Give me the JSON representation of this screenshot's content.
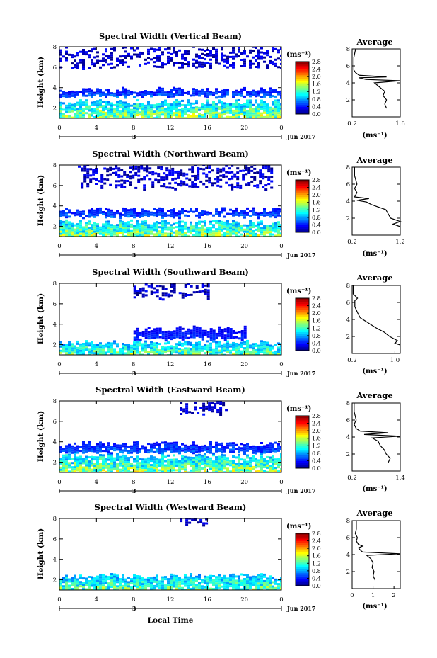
{
  "figure": {
    "x_axis_title": "Local Time",
    "date_label": "Jun 2017",
    "day_label": "3",
    "x_tick_labels": [
      "0",
      "4",
      "8",
      "12",
      "16",
      "20",
      "0"
    ],
    "height_label": "Height (km)",
    "colorbar_unit": "(ms⁻¹)",
    "colorbar_ticks": [
      "2.8",
      "2.4",
      "2.0",
      "1.6",
      "1.2",
      "0.8",
      "0.4",
      "0.0"
    ],
    "profile_title": "Average",
    "profile_unit": "(ms⁻¹)"
  },
  "chart_data": [
    {
      "type": "heatmap",
      "title": "Spectral Width (Vertical Beam)",
      "xlabel": "",
      "ylabel": "Height (km)",
      "xlim": [
        0,
        24
      ],
      "ylim": [
        1,
        8
      ],
      "x_ticks": [
        0,
        4,
        8,
        12,
        16,
        20,
        24
      ],
      "y_ticks": [
        2,
        4,
        6,
        8
      ],
      "colorbar": {
        "label": "(ms⁻¹)",
        "range": [
          0.0,
          2.8
        ],
        "ticks": [
          2.8,
          2.4,
          2.0,
          1.6,
          1.2,
          0.8,
          0.4,
          0.0
        ]
      },
      "regions": [
        {
          "desc": "boundary layer",
          "x": [
            0,
            24
          ],
          "height": [
            1.0,
            2.6
          ],
          "width": [
            0.4,
            2.0
          ]
        },
        {
          "desc": "upper layer",
          "x": [
            0,
            24
          ],
          "height": [
            3.2,
            3.8
          ],
          "width": [
            0.2,
            0.8
          ]
        },
        {
          "desc": "upper sparse echoes",
          "x": [
            0,
            24
          ],
          "height": [
            6.0,
            8.0
          ],
          "width": [
            0.0,
            0.4
          ]
        }
      ]
    },
    {
      "type": "heatmap",
      "title": "Spectral Width (Northward Beam)",
      "xlabel": "",
      "ylabel": "Height (km)",
      "xlim": [
        0,
        24
      ],
      "ylim": [
        1,
        8
      ],
      "x_ticks": [
        0,
        4,
        8,
        12,
        16,
        20,
        24
      ],
      "y_ticks": [
        2,
        4,
        6,
        8
      ],
      "colorbar": {
        "label": "(ms⁻¹)",
        "range": [
          0.0,
          2.8
        ],
        "ticks": [
          2.8,
          2.4,
          2.0,
          1.6,
          1.2,
          0.8,
          0.4,
          0.0
        ]
      },
      "regions": [
        {
          "desc": "boundary layer",
          "x": [
            0,
            24
          ],
          "height": [
            1.0,
            2.4
          ],
          "width": [
            0.4,
            2.0
          ]
        },
        {
          "desc": "upper layer",
          "x": [
            0,
            24
          ],
          "height": [
            3.0,
            3.6
          ],
          "width": [
            0.2,
            0.8
          ]
        },
        {
          "desc": "upper sparse echoes",
          "x": [
            2,
            23
          ],
          "height": [
            5.8,
            8.0
          ],
          "width": [
            0.0,
            0.4
          ]
        }
      ]
    },
    {
      "type": "heatmap",
      "title": "Spectral Width (Southward Beam)",
      "xlabel": "",
      "ylabel": "Height (km)",
      "xlim": [
        0,
        24
      ],
      "ylim": [
        1,
        8
      ],
      "x_ticks": [
        0,
        4,
        8,
        12,
        16,
        20,
        24
      ],
      "y_ticks": [
        2,
        4,
        6,
        8
      ],
      "colorbar": {
        "label": "(ms⁻¹)",
        "range": [
          0.0,
          2.8
        ],
        "ticks": [
          2.8,
          2.4,
          2.0,
          1.6,
          1.2,
          0.8,
          0.4,
          0.0
        ]
      },
      "regions": [
        {
          "desc": "boundary layer",
          "x": [
            0,
            24
          ],
          "height": [
            1.0,
            2.2
          ],
          "width": [
            0.4,
            1.8
          ]
        },
        {
          "desc": "upper layer",
          "x": [
            8,
            20
          ],
          "height": [
            2.6,
            3.6
          ],
          "width": [
            0.2,
            0.6
          ]
        },
        {
          "desc": "upper sparse echoes",
          "x": [
            8,
            16
          ],
          "height": [
            6.6,
            8.0
          ],
          "width": [
            0.0,
            0.4
          ]
        }
      ]
    },
    {
      "type": "heatmap",
      "title": "Spectral Width (Eastward Beam)",
      "xlabel": "",
      "ylabel": "Height (km)",
      "xlim": [
        0,
        24
      ],
      "ylim": [
        1,
        8
      ],
      "x_ticks": [
        0,
        4,
        8,
        12,
        16,
        20,
        24
      ],
      "y_ticks": [
        2,
        4,
        6,
        8
      ],
      "colorbar": {
        "label": "(ms⁻¹)",
        "range": [
          0.0,
          2.8
        ],
        "ticks": [
          2.8,
          2.4,
          2.0,
          1.6,
          1.2,
          0.8,
          0.4,
          0.0
        ]
      },
      "regions": [
        {
          "desc": "boundary layer",
          "x": [
            0,
            24
          ],
          "height": [
            1.0,
            2.6
          ],
          "width": [
            0.4,
            2.0
          ]
        },
        {
          "desc": "upper layer",
          "x": [
            0,
            24
          ],
          "height": [
            3.0,
            3.8
          ],
          "width": [
            0.2,
            0.8
          ]
        },
        {
          "desc": "upper sparse echoes",
          "x": [
            13,
            18
          ],
          "height": [
            6.8,
            8.0
          ],
          "width": [
            0.0,
            0.4
          ]
        }
      ]
    },
    {
      "type": "heatmap",
      "title": "Spectral Width (Westward Beam)",
      "xlabel": "",
      "ylabel": "Height (km)",
      "xlim": [
        0,
        24
      ],
      "ylim": [
        1,
        8
      ],
      "x_ticks": [
        0,
        4,
        8,
        12,
        16,
        20,
        24
      ],
      "y_ticks": [
        2,
        4,
        6,
        8
      ],
      "colorbar": {
        "label": "(ms⁻¹)",
        "range": [
          0.0,
          2.8
        ],
        "ticks": [
          2.8,
          2.4,
          2.0,
          1.6,
          1.2,
          0.8,
          0.4,
          0.0
        ]
      },
      "regions": [
        {
          "desc": "boundary layer",
          "x": [
            0,
            24
          ],
          "height": [
            1.0,
            2.4
          ],
          "width": [
            0.4,
            1.8
          ]
        },
        {
          "desc": "upper sparse echoes",
          "x": [
            13,
            16
          ],
          "height": [
            7.4,
            8.0
          ],
          "width": [
            0.0,
            0.4
          ]
        }
      ]
    },
    {
      "type": "line",
      "title": "Average",
      "xlabel": "(ms⁻¹)",
      "ylabel": "",
      "xlim": [
        0.2,
        1.6
      ],
      "ylim": [
        0,
        8
      ],
      "x_ticks": [
        0.2,
        1.6
      ],
      "x_tick_labels": [
        "0.2",
        "1.6"
      ],
      "y_ticks": [
        2,
        4,
        6,
        8
      ],
      "series": [
        {
          "points": [
            [
              1.2,
              1.0
            ],
            [
              1.15,
              1.5
            ],
            [
              1.2,
              2.0
            ],
            [
              1.1,
              2.5
            ],
            [
              1.15,
              3.0
            ],
            [
              1.0,
              3.5
            ],
            [
              0.85,
              4.0
            ],
            [
              1.6,
              4.25
            ],
            [
              0.6,
              4.4
            ],
            [
              0.4,
              4.6
            ],
            [
              1.2,
              4.7
            ],
            [
              0.4,
              4.9
            ],
            [
              0.3,
              5.2
            ],
            [
              0.25,
              5.5
            ],
            [
              0.25,
              6.0
            ],
            [
              0.25,
              7.0
            ],
            [
              0.3,
              8.0
            ]
          ]
        }
      ]
    },
    {
      "type": "line",
      "title": "Average",
      "xlabel": "(ms⁻¹)",
      "ylabel": "",
      "xlim": [
        0.2,
        1.2
      ],
      "ylim": [
        0,
        8
      ],
      "x_ticks": [
        0.2,
        1.2
      ],
      "x_tick_labels": [
        "0.2",
        "1.2"
      ],
      "y_ticks": [
        2,
        4,
        6,
        8
      ],
      "series": [
        {
          "points": [
            [
              1.2,
              1.0
            ],
            [
              1.05,
              1.3
            ],
            [
              1.2,
              1.6
            ],
            [
              1.0,
              2.0
            ],
            [
              0.95,
              2.5
            ],
            [
              0.9,
              3.0
            ],
            [
              0.75,
              3.3
            ],
            [
              0.6,
              3.6
            ],
            [
              0.5,
              3.9
            ],
            [
              0.3,
              4.1
            ],
            [
              0.55,
              4.3
            ],
            [
              0.25,
              4.5
            ],
            [
              0.3,
              5.0
            ],
            [
              0.25,
              5.5
            ],
            [
              0.3,
              6.0
            ],
            [
              0.25,
              7.0
            ],
            [
              0.25,
              8.0
            ]
          ]
        }
      ]
    },
    {
      "type": "line",
      "title": "Average",
      "xlabel": "(ms⁻¹)",
      "ylabel": "",
      "xlim": [
        0.2,
        1.1
      ],
      "ylim": [
        0,
        8
      ],
      "x_ticks": [
        0.2,
        1.0
      ],
      "x_tick_labels": [
        "0.2",
        "1.0"
      ],
      "y_ticks": [
        2,
        4,
        6,
        8
      ],
      "series": [
        {
          "points": [
            [
              1.1,
              1.0
            ],
            [
              1.0,
              1.2
            ],
            [
              1.05,
              1.5
            ],
            [
              0.9,
              2.0
            ],
            [
              0.8,
              2.5
            ],
            [
              0.65,
              3.0
            ],
            [
              0.55,
              3.4
            ],
            [
              0.45,
              3.8
            ],
            [
              0.35,
              4.2
            ],
            [
              0.3,
              4.8
            ],
            [
              0.25,
              5.5
            ],
            [
              0.25,
              6.2
            ],
            [
              0.3,
              6.5
            ],
            [
              0.22,
              7.0
            ],
            [
              0.22,
              8.0
            ]
          ]
        }
      ]
    },
    {
      "type": "line",
      "title": "Average",
      "xlabel": "(ms⁻¹)",
      "ylabel": "",
      "xlim": [
        0.2,
        1.4
      ],
      "ylim": [
        0,
        8
      ],
      "x_ticks": [
        0.2,
        1.4
      ],
      "x_tick_labels": [
        "0.2",
        "1.4"
      ],
      "y_ticks": [
        2,
        4,
        6,
        8
      ],
      "series": [
        {
          "points": [
            [
              1.1,
              1.0
            ],
            [
              1.15,
              1.5
            ],
            [
              1.05,
              2.0
            ],
            [
              1.0,
              2.5
            ],
            [
              0.9,
              3.0
            ],
            [
              0.85,
              3.5
            ],
            [
              0.7,
              3.9
            ],
            [
              1.4,
              4.1
            ],
            [
              0.5,
              4.3
            ],
            [
              1.1,
              4.5
            ],
            [
              0.4,
              4.7
            ],
            [
              0.3,
              5.0
            ],
            [
              0.25,
              5.5
            ],
            [
              0.3,
              6.0
            ],
            [
              0.25,
              7.0
            ],
            [
              0.25,
              8.0
            ]
          ]
        }
      ]
    },
    {
      "type": "line",
      "title": "Average",
      "xlabel": "(ms⁻¹)",
      "ylabel": "",
      "xlim": [
        0,
        2.3
      ],
      "ylim": [
        0,
        8
      ],
      "x_ticks": [
        0,
        1,
        2
      ],
      "x_tick_labels": [
        "0",
        "1",
        "2"
      ],
      "y_ticks": [
        2,
        4,
        6,
        8
      ],
      "series": [
        {
          "points": [
            [
              1.1,
              1.0
            ],
            [
              1.0,
              1.5
            ],
            [
              1.05,
              2.0
            ],
            [
              0.95,
              2.5
            ],
            [
              1.0,
              3.0
            ],
            [
              0.9,
              3.5
            ],
            [
              0.7,
              3.9
            ],
            [
              2.3,
              4.1
            ],
            [
              0.5,
              4.3
            ],
            [
              0.4,
              4.5
            ],
            [
              0.3,
              4.8
            ],
            [
              0.5,
              5.0
            ],
            [
              0.3,
              5.2
            ],
            [
              0.2,
              5.6
            ],
            [
              0.25,
              6.0
            ],
            [
              0.15,
              6.5
            ],
            [
              0.2,
              7.0
            ],
            [
              0.2,
              8.0
            ]
          ]
        }
      ]
    }
  ]
}
